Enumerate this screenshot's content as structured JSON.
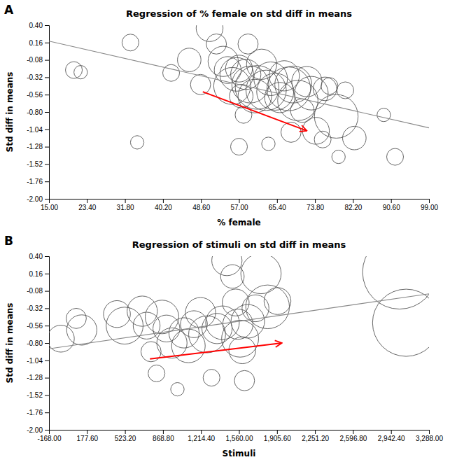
{
  "chart_data": [
    {
      "type": "scatter",
      "panel_label": "A",
      "title": "Regression of % female on std diff in means",
      "xlabel": "% female",
      "ylabel": "Std diff in means",
      "xlim": [
        15.0,
        99.0
      ],
      "ylim": [
        -2.0,
        0.4
      ],
      "xticks": [
        {
          "value": 15.0,
          "label": "15.00"
        },
        {
          "value": 23.4,
          "label": "23.40"
        },
        {
          "value": 31.8,
          "label": "31.80"
        },
        {
          "value": 40.2,
          "label": "40.20"
        },
        {
          "value": 48.6,
          "label": "48.60"
        },
        {
          "value": 57.0,
          "label": "57.00"
        },
        {
          "value": 65.4,
          "label": "65.40"
        },
        {
          "value": 73.8,
          "label": "73.80"
        },
        {
          "value": 82.2,
          "label": "82.20"
        },
        {
          "value": 90.6,
          "label": "90.60"
        },
        {
          "value": 99.0,
          "label": "99.00"
        }
      ],
      "yticks": [
        {
          "value": 0.4,
          "label": "0.40"
        },
        {
          "value": 0.16,
          "label": "0.16"
        },
        {
          "value": -0.08,
          "label": "-0.08"
        },
        {
          "value": -0.32,
          "label": "-0.32"
        },
        {
          "value": -0.56,
          "label": "-0.56"
        },
        {
          "value": -0.8,
          "label": "-0.80"
        },
        {
          "value": -1.04,
          "label": "-1.04"
        },
        {
          "value": -1.28,
          "label": "-1.28"
        },
        {
          "value": -1.52,
          "label": "-1.52"
        },
        {
          "value": -1.76,
          "label": "-1.76"
        },
        {
          "value": -2.0,
          "label": "-2.00"
        }
      ],
      "series": [
        {
          "type": "scatter",
          "marker": "circle",
          "color": "#555555",
          "x": [
            20.5,
            22.0,
            33.0,
            34.5,
            42.0,
            46.0,
            48.5,
            50.5,
            52.0,
            53.5,
            54.5,
            55.5,
            56.5,
            57.0,
            57.5,
            58.0,
            58.5,
            59.0,
            59.5,
            60.5,
            61.0,
            62.0,
            63.0,
            64.0,
            65.0,
            66.0,
            67.0,
            68.0,
            68.5,
            69.0,
            70.0,
            71.0,
            72.0,
            73.0,
            74.0,
            75.5,
            76.0,
            77.0,
            78.5,
            79.0,
            80.5,
            82.5,
            89.0,
            91.5,
            57.0,
            63.5
          ],
          "values": [
            -0.22,
            -0.25,
            0.16,
            -1.22,
            -0.26,
            -0.08,
            -0.42,
            0.36,
            0.14,
            -0.1,
            -0.22,
            -0.44,
            -0.28,
            -0.2,
            -0.58,
            -0.84,
            -0.28,
            0.14,
            -0.42,
            -0.58,
            -0.46,
            -0.14,
            -0.5,
            -0.34,
            -0.52,
            -0.6,
            -0.3,
            -0.48,
            -1.08,
            -0.42,
            -0.64,
            -0.78,
            -0.38,
            -0.54,
            -1.06,
            -1.18,
            -0.48,
            -0.44,
            -0.86,
            -1.42,
            -0.5,
            -1.16,
            -0.84,
            -1.42,
            -1.28,
            -1.24
          ],
          "sizes": [
            5,
            4,
            5,
            4,
            5,
            7,
            6,
            8,
            6,
            9,
            8,
            11,
            10,
            8,
            7,
            5,
            9,
            6,
            11,
            10,
            13,
            9,
            12,
            10,
            11,
            9,
            9,
            13,
            6,
            11,
            12,
            7,
            9,
            10,
            8,
            5,
            7,
            5,
            13,
            4,
            5,
            7,
            4,
            5,
            5,
            4
          ]
        },
        {
          "type": "line",
          "line_style": "solid",
          "color": "#888888",
          "x": [
            15.0,
            99.0
          ],
          "values": [
            0.18,
            -1.02
          ]
        },
        {
          "type": "arrow",
          "color": "red",
          "x": [
            49.0,
            72.0
          ],
          "values": [
            -0.52,
            -1.06
          ]
        }
      ]
    },
    {
      "type": "scatter",
      "panel_label": "B",
      "title": "Regression of stimuli on std diff in means",
      "xlabel": "Stimuli",
      "ylabel": "Std diff in means",
      "xlim": [
        -168.0,
        3288.0
      ],
      "ylim": [
        -2.0,
        0.4
      ],
      "xticks": [
        {
          "value": -168.0,
          "label": "-168.00"
        },
        {
          "value": 177.6,
          "label": "177.60"
        },
        {
          "value": 523.2,
          "label": "523.20"
        },
        {
          "value": 868.8,
          "label": "868.80"
        },
        {
          "value": 1214.4,
          "label": "1,214.40"
        },
        {
          "value": 1560.0,
          "label": "1,560.00"
        },
        {
          "value": 1905.6,
          "label": "1,905.60"
        },
        {
          "value": 2251.2,
          "label": "2,251.20"
        },
        {
          "value": 2596.8,
          "label": "2,596.80"
        },
        {
          "value": 2942.4,
          "label": "2,942.40"
        },
        {
          "value": 3288.0,
          "label": "3,288.00"
        }
      ],
      "yticks": [
        {
          "value": 0.4,
          "label": "0.40"
        },
        {
          "value": 0.16,
          "label": "0.16"
        },
        {
          "value": -0.08,
          "label": "-0.08"
        },
        {
          "value": -0.32,
          "label": "-0.32"
        },
        {
          "value": -0.56,
          "label": "-0.56"
        },
        {
          "value": -0.8,
          "label": "-0.80"
        },
        {
          "value": -1.04,
          "label": "-1.04"
        },
        {
          "value": -1.28,
          "label": "-1.28"
        },
        {
          "value": -1.52,
          "label": "-1.52"
        },
        {
          "value": -1.76,
          "label": "-1.76"
        },
        {
          "value": -2.0,
          "label": "-2.00"
        }
      ],
      "series": [
        {
          "type": "scatter",
          "marker": "circle",
          "color": "#555555",
          "x": [
            -60.0,
            80.0,
            130.0,
            450.0,
            520.0,
            680.0,
            720.0,
            760.0,
            810.0,
            860.0,
            900.0,
            950.0,
            1000.0,
            1060.0,
            1100.0,
            1150.0,
            1210.0,
            1270.0,
            1310.0,
            1360.0,
            1410.0,
            1450.0,
            1500.0,
            1530.0,
            1550.0,
            1570.0,
            1590.0,
            1610.0,
            1640.0,
            1710.0,
            1760.0,
            1820.0,
            1910.0,
            3020.0,
            3080.0
          ],
          "values": [
            -0.74,
            -0.46,
            -0.62,
            -0.4,
            -0.56,
            -0.36,
            -0.56,
            -0.92,
            -1.22,
            -0.44,
            -0.6,
            -0.8,
            -1.44,
            -0.66,
            -0.84,
            -0.54,
            -0.38,
            -0.68,
            -1.28,
            -0.6,
            -0.52,
            0.34,
            0.12,
            -0.24,
            -0.54,
            -0.74,
            -0.9,
            -1.32,
            -0.5,
            -0.32,
            0.16,
            -0.3,
            -0.22,
            0.18,
            -0.52
          ],
          "sizes": [
            8,
            6,
            9,
            8,
            11,
            9,
            8,
            6,
            5,
            10,
            8,
            9,
            4,
            9,
            10,
            8,
            9,
            11,
            5,
            9,
            10,
            9,
            7,
            8,
            9,
            11,
            8,
            6,
            10,
            8,
            12,
            13,
            8,
            22,
            20
          ]
        },
        {
          "type": "line",
          "line_style": "solid",
          "color": "#888888",
          "x": [
            -168.0,
            3288.0
          ],
          "values": [
            -0.88,
            -0.12
          ]
        },
        {
          "type": "arrow",
          "color": "red",
          "x": [
            750.0,
            1950.0
          ],
          "values": [
            -1.02,
            -0.8
          ]
        }
      ]
    }
  ]
}
